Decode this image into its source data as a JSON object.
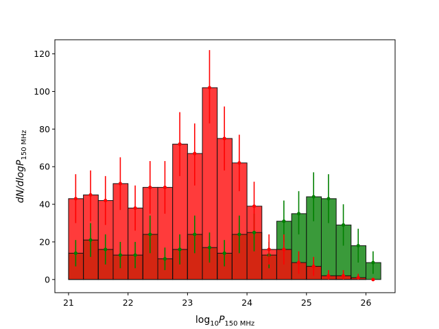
{
  "chart_data": {
    "type": "bar",
    "xlabel": "log",
    "xlabel_sub": "10",
    "xlabel_var": "P",
    "xlabel_var_sub": "150 MHz",
    "ylabel_main": "dN/dlog",
    "ylabel_var": "P",
    "ylabel_sub": "150 MHz",
    "xlim": [
      20.77,
      26.49
    ],
    "ylim": [
      -7,
      127.5
    ],
    "xticks": [
      21,
      22,
      23,
      24,
      25,
      26
    ],
    "yticks": [
      0,
      20,
      40,
      60,
      80,
      100,
      120
    ],
    "bin_edges": [
      21.0,
      21.25,
      21.5,
      21.75,
      22.0,
      22.25,
      22.5,
      22.75,
      23.0,
      23.25,
      23.5,
      23.75,
      24.0,
      24.25,
      24.5,
      24.75,
      25.0,
      25.25,
      25.5,
      25.75,
      26.0,
      26.25
    ],
    "bin_centers": [
      21.12,
      21.37,
      21.62,
      21.87,
      22.12,
      22.37,
      22.62,
      22.87,
      23.12,
      23.37,
      23.62,
      23.87,
      24.12,
      24.37,
      24.62,
      24.87,
      25.12,
      25.37,
      25.62,
      25.87,
      26.12
    ],
    "series": [
      {
        "color": "#ff0000",
        "bar_color": "#ff3b3b",
        "values": [
          43,
          45,
          42,
          51,
          38,
          49,
          49,
          72,
          67,
          102,
          75,
          62,
          39,
          16,
          16,
          9,
          7,
          2,
          2,
          1,
          0
        ],
        "error_low": [
          30,
          31,
          29,
          37,
          26,
          35,
          35,
          55,
          50,
          83,
          58,
          47,
          26,
          8,
          8,
          3,
          2,
          0,
          0,
          0,
          0
        ],
        "error_high": [
          56,
          58,
          55,
          65,
          50,
          63,
          63,
          89,
          83,
          122,
          92,
          77,
          52,
          24,
          24,
          15,
          12,
          5,
          5,
          3,
          0
        ],
        "show_markers": [
          true,
          true,
          true,
          true,
          true,
          true,
          true,
          true,
          true,
          true,
          true,
          true,
          true,
          true,
          true,
          true,
          true,
          true,
          true,
          true,
          true
        ]
      },
      {
        "color": "#008000",
        "bar_color": "#3a9a3a",
        "values": [
          14,
          21,
          16,
          13,
          13,
          24,
          11,
          16,
          24,
          17,
          14,
          24,
          25,
          13,
          31,
          35,
          44,
          43,
          29,
          18,
          9
        ],
        "error_low": [
          7,
          12,
          8,
          6,
          6,
          14,
          5,
          8,
          14,
          9,
          7,
          14,
          15,
          6,
          20,
          24,
          31,
          30,
          18,
          9,
          3
        ],
        "error_high": [
          21,
          30,
          24,
          20,
          20,
          34,
          17,
          24,
          34,
          25,
          21,
          34,
          35,
          20,
          42,
          47,
          57,
          56,
          40,
          27,
          15
        ],
        "show_markers": [
          true,
          true,
          true,
          true,
          true,
          true,
          true,
          true,
          true,
          true,
          true,
          true,
          true,
          true,
          true,
          true,
          true,
          true,
          true,
          true,
          true
        ]
      }
    ],
    "overlap_color": "#d42612",
    "grid": false
  }
}
